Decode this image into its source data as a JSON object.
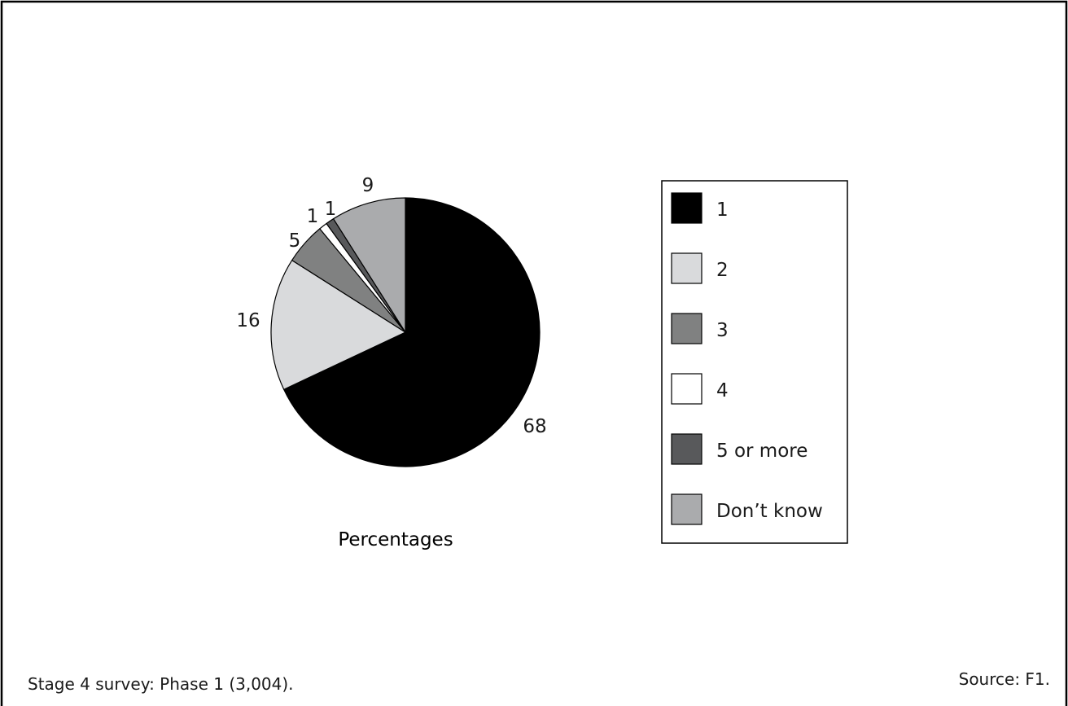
{
  "chart_data": {
    "type": "pie",
    "title": "",
    "xlabel": "Percentages",
    "categories": [
      "1",
      "2",
      "3",
      "4",
      "5 or more",
      "Don’t know"
    ],
    "values": [
      68,
      16,
      5,
      1,
      1,
      9
    ],
    "data_labels": [
      "68",
      "16",
      "5",
      "1",
      "1",
      "9"
    ],
    "colors": [
      "#000000",
      "#d9dadc",
      "#808181",
      "#ffffff",
      "#58595b",
      "#aaabad"
    ],
    "start": "12 o'clock",
    "direction": "clockwise",
    "legend": {
      "placement": "right",
      "entries": [
        "1",
        "2",
        "3",
        "4",
        "5 or more",
        "Don’t know"
      ]
    }
  },
  "footer": {
    "note": "Stage 4 survey: Phase 1 (3,004).",
    "source": "Source: F1."
  }
}
